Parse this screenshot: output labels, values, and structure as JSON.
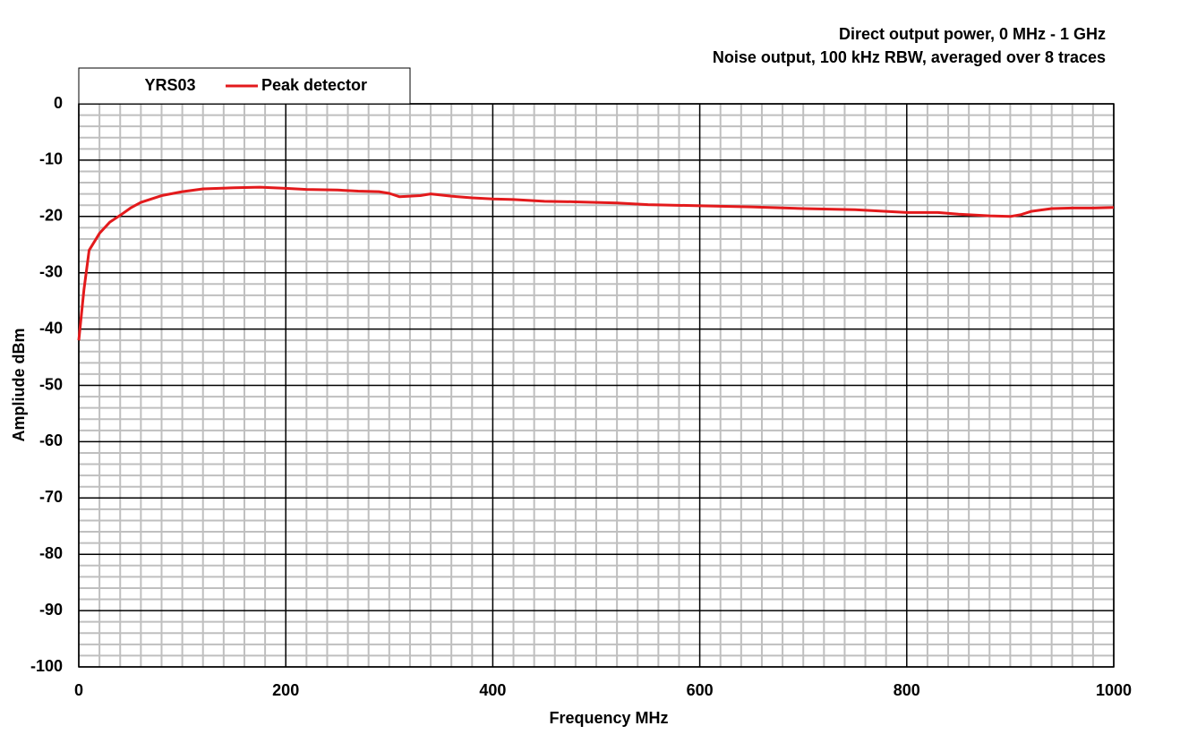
{
  "chart_data": {
    "type": "line",
    "annotations": [
      "Direct output power, 0 MHz - 1 GHz",
      "Noise output, 100 kHz RBW, averaged over 8 traces"
    ],
    "legend_title": "YRS03",
    "x_label": "Frequency  MHz",
    "y_label": "Ampliude dBm",
    "x": [
      0,
      5,
      10,
      20,
      30,
      40,
      50,
      60,
      80,
      100,
      120,
      150,
      175,
      200,
      220,
      250,
      270,
      290,
      300,
      310,
      330,
      340,
      360,
      380,
      400,
      420,
      450,
      480,
      500,
      520,
      550,
      600,
      650,
      700,
      750,
      800,
      830,
      850,
      880,
      900,
      910,
      920,
      940,
      960,
      980,
      1000
    ],
    "series": [
      {
        "name": "Peak detector",
        "color": "#e31a1c",
        "values": [
          -42,
          -33,
          -26,
          -23,
          -21,
          -19.8,
          -18.5,
          -17.5,
          -16.3,
          -15.6,
          -15.1,
          -14.9,
          -14.8,
          -15,
          -15.2,
          -15.3,
          -15.5,
          -15.6,
          -15.9,
          -16.5,
          -16.3,
          -16,
          -16.4,
          -16.7,
          -16.9,
          -17,
          -17.3,
          -17.4,
          -17.5,
          -17.6,
          -17.9,
          -18.1,
          -18.3,
          -18.6,
          -18.8,
          -19.3,
          -19.3,
          -19.6,
          -19.9,
          -20,
          -19.7,
          -19.1,
          -18.6,
          -18.5,
          -18.5,
          -18.4
        ]
      }
    ],
    "xlim": [
      0,
      1000
    ],
    "xticks": [
      0,
      200,
      400,
      600,
      800,
      1000
    ],
    "ylim": [
      -100,
      0
    ],
    "yticks": [
      -100,
      -90,
      -80,
      -70,
      -60,
      -50,
      -40,
      -30,
      -20,
      -10,
      0
    ],
    "grid": true
  }
}
